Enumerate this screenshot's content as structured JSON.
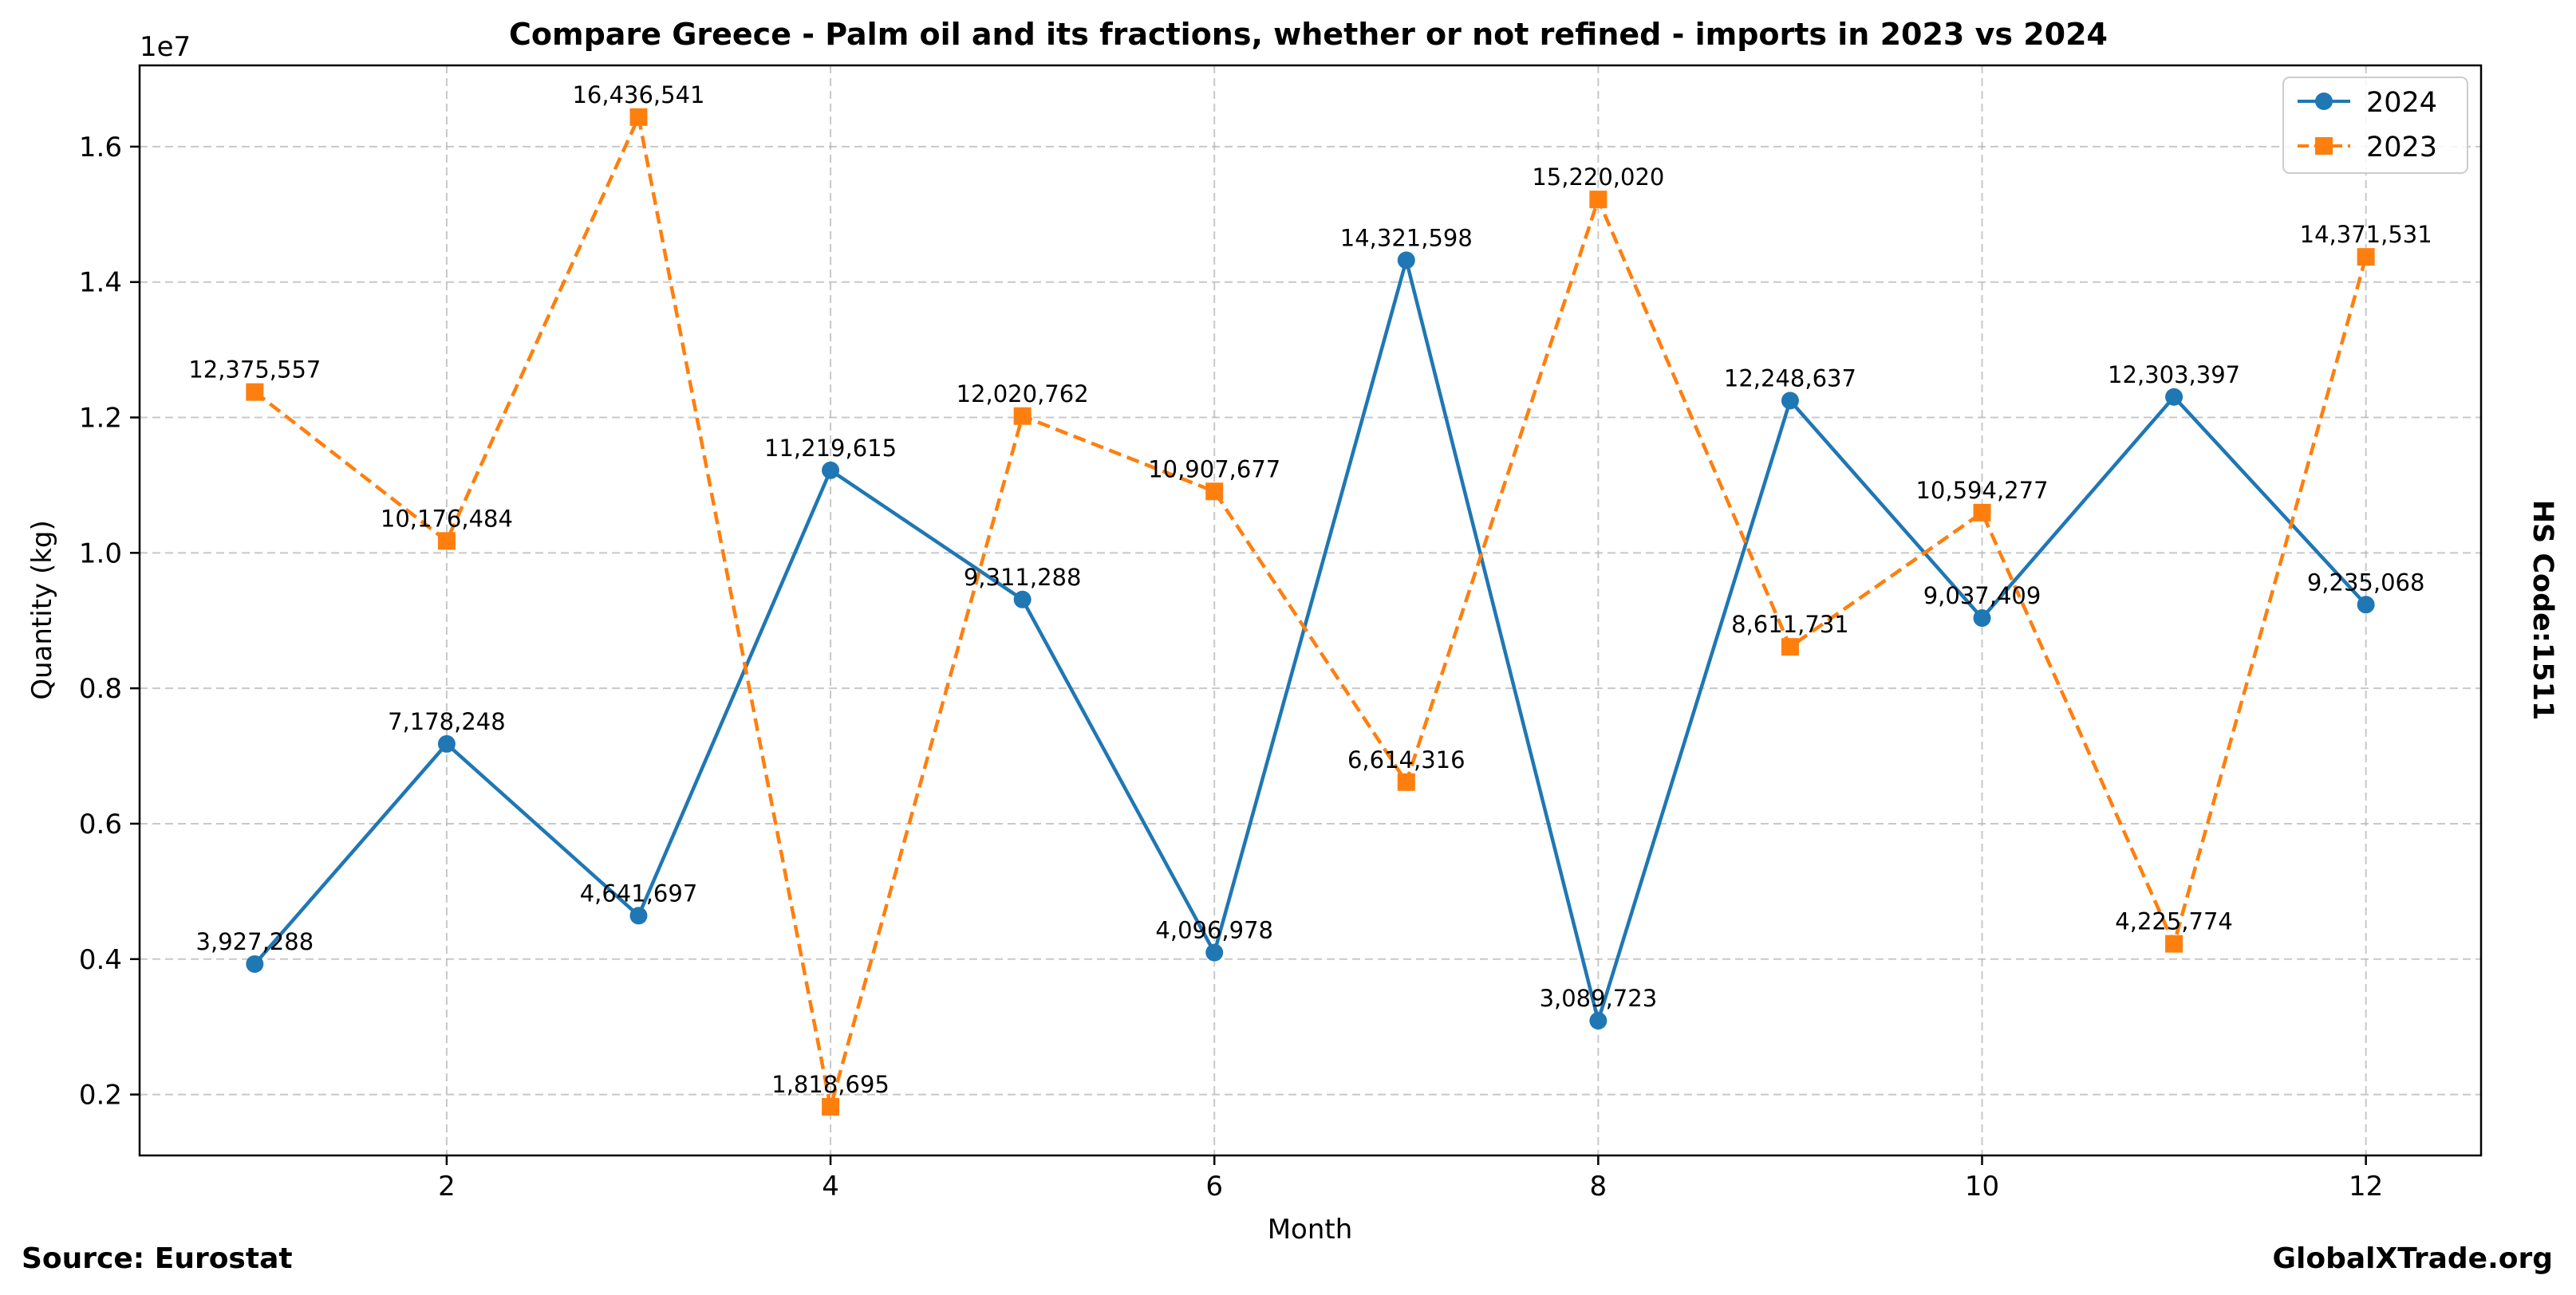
{
  "chart_data": {
    "type": "line",
    "title": "Compare Greece - Palm oil and its fractions, whether or not refined - imports in 2023 vs 2024",
    "xlabel": "Month",
    "ylabel": "Quantity (kg)",
    "y_scale_note": "1e7",
    "x": [
      1,
      2,
      3,
      4,
      5,
      6,
      7,
      8,
      9,
      10,
      11,
      12
    ],
    "xlim": [
      0.4,
      12.6
    ],
    "ylim": [
      1100000,
      17200000
    ],
    "x_ticks": [
      2,
      4,
      6,
      8,
      10,
      12
    ],
    "y_ticks": [
      0.2,
      0.4,
      0.6,
      0.8,
      1.0,
      1.2,
      1.4,
      1.6
    ],
    "y_tick_labels": [
      "0.2",
      "0.4",
      "0.6",
      "0.8",
      "1.0",
      "1.2",
      "1.4",
      "1.6"
    ],
    "grid": true,
    "legend_position": "top-right",
    "series": [
      {
        "name": "2024",
        "color": "#1f77b4",
        "line_style": "solid",
        "marker": "circle",
        "values": [
          3927288,
          7178248,
          4641697,
          11219615,
          9311288,
          4096978,
          14321598,
          3089723,
          12248637,
          9037409,
          12303397,
          9235068
        ],
        "labels": [
          "3,927,288",
          "7,178,248",
          "4,641,697",
          "11,219,615",
          "9,311,288",
          "4,096,978",
          "14,321,598",
          "3,089,723",
          "12,248,637",
          "9,037,409",
          "12,303,397",
          "9,235,068"
        ]
      },
      {
        "name": "2023",
        "color": "#ff7f0e",
        "line_style": "dashed",
        "marker": "square",
        "values": [
          12375557,
          10176484,
          16436541,
          1818695,
          12020762,
          10907677,
          6614316,
          15220020,
          8611731,
          10594277,
          4225774,
          14371531
        ],
        "labels": [
          "12,375,557",
          "10,176,484",
          "16,436,541",
          "1,818,695",
          "12,020,762",
          "10,907,677",
          "6,614,316",
          "15,220,020",
          "8,611,731",
          "10,594,277",
          "4,225,774",
          "14,371,531"
        ]
      }
    ]
  },
  "footer": {
    "source": "Source: Eurostat",
    "brand": "GlobalXTrade.org",
    "hs_code": "HS Code:1511"
  }
}
